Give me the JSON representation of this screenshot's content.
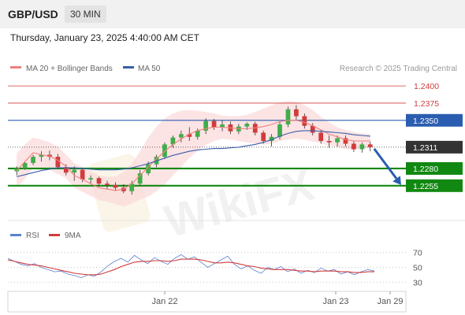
{
  "header": {
    "symbol": "GBP/USD",
    "timeframe": "30 MIN",
    "timestamp": "Thursday, January 23, 2025 4:40:00 AM CET"
  },
  "legend": {
    "ma20_label": "MA 20 + Bollinger Bands",
    "ma20_color": "#f08080",
    "ma50_label": "MA 50",
    "ma50_color": "#3a5ea8",
    "credit": "Research © 2025 Trading Central"
  },
  "watermark": "WikiFX",
  "colors": {
    "up_candle": "#3fae49",
    "down_candle": "#d23b3b",
    "resistance": "#d23b3b",
    "pivot": "#2a5db0",
    "support": "#118811",
    "current": "#333333",
    "rsi": "#5a82d2",
    "rsi_ma": "#d23b3b"
  },
  "chart_data": [
    {
      "type": "line",
      "title": "",
      "ylim": [
        1.2225,
        1.2415
      ],
      "x_tick_labels": [
        "Jan 22",
        "Jan 23",
        "Jan 29"
      ],
      "y_tick_labels": [
        "1.2400",
        "1.2375",
        "1.2350",
        "1.2311",
        "1.2280",
        "1.2255"
      ],
      "levels": [
        {
          "label": "1.2400",
          "value": 1.24,
          "kind": "resistance"
        },
        {
          "label": "1.2375",
          "value": 1.2375,
          "kind": "resistance"
        },
        {
          "label": "1.2350",
          "value": 1.235,
          "kind": "pivot"
        },
        {
          "label": "1.2311",
          "value": 1.2311,
          "kind": "current"
        },
        {
          "label": "1.2280",
          "value": 1.228,
          "kind": "support"
        },
        {
          "label": "1.2255",
          "value": 1.2255,
          "kind": "support"
        }
      ],
      "forecast_arrow": {
        "from": 1.2311,
        "to": 1.2255
      },
      "series": [
        {
          "name": "MA 20 + Bollinger Bands",
          "close": [
            1.2277,
            1.229,
            1.2303,
            1.23,
            1.2298,
            1.2292,
            1.2283,
            1.227,
            1.2264,
            1.2258,
            1.2252,
            1.225,
            1.2248,
            1.225,
            1.2258,
            1.227,
            1.2282,
            1.2294,
            1.2305,
            1.2315,
            1.2323,
            1.233,
            1.2335,
            1.2338,
            1.234,
            1.234,
            1.2339,
            1.2338,
            1.2338,
            1.2339,
            1.2341,
            1.2344,
            1.2348,
            1.235,
            1.235,
            1.2347,
            1.2342,
            1.2336,
            1.233,
            1.2326,
            1.2322,
            1.232,
            1.232,
            1.232
          ],
          "upper": [
            1.2302,
            1.2315,
            1.2325,
            1.2322,
            1.2318,
            1.2312,
            1.23,
            1.2288,
            1.2282,
            1.2276,
            1.227,
            1.2268,
            1.2268,
            1.2275,
            1.2287,
            1.2305,
            1.2325,
            1.2341,
            1.2353,
            1.236,
            1.2364,
            1.2365,
            1.2364,
            1.2362,
            1.236,
            1.2357,
            1.2356,
            1.2356,
            1.2358,
            1.2362,
            1.2367,
            1.2372,
            1.2376,
            1.2378,
            1.2377,
            1.2372,
            1.2365,
            1.2355,
            1.2347,
            1.234,
            1.2336,
            1.2333,
            1.2331,
            1.233
          ],
          "lower": [
            1.2252,
            1.2265,
            1.2281,
            1.2278,
            1.2278,
            1.2272,
            1.2266,
            1.2252,
            1.2246,
            1.224,
            1.2234,
            1.2232,
            1.2228,
            1.2225,
            1.2229,
            1.2235,
            1.2239,
            1.2247,
            1.2257,
            1.227,
            1.2282,
            1.2295,
            1.2306,
            1.2314,
            1.232,
            1.2323,
            1.2322,
            1.232,
            1.2318,
            1.2316,
            1.2315,
            1.2316,
            1.232,
            1.2322,
            1.2323,
            1.2322,
            1.2319,
            1.2317,
            1.2313,
            1.2312,
            1.2308,
            1.2307,
            1.2309,
            1.231
          ]
        },
        {
          "name": "MA 50",
          "close": [
            1.2268,
            1.2271,
            1.2274,
            1.2277,
            1.2279,
            1.2281,
            1.2281,
            1.2281,
            1.228,
            1.2279,
            1.2278,
            1.2278,
            1.2278,
            1.2279,
            1.2281,
            1.2284,
            1.2287,
            1.2291,
            1.2295,
            1.2299,
            1.2302,
            1.2305,
            1.2307,
            1.2308,
            1.2309,
            1.2309,
            1.231,
            1.2311,
            1.2313,
            1.2315,
            1.2318,
            1.2322,
            1.2327,
            1.2331,
            1.2334,
            1.2335,
            1.2335,
            1.2334,
            1.2333,
            1.2332,
            1.2331,
            1.2329,
            1.2328,
            1.2327
          ]
        }
      ],
      "candles": [
        [
          1.2276,
          1.2283,
          1.227,
          1.228
        ],
        [
          1.228,
          1.229,
          1.2278,
          1.2288
        ],
        [
          1.2288,
          1.23,
          1.2285,
          1.2297
        ],
        [
          1.2297,
          1.2305,
          1.229,
          1.23
        ],
        [
          1.23,
          1.2306,
          1.2292,
          1.2297
        ],
        [
          1.2297,
          1.2301,
          1.228,
          1.2282
        ],
        [
          1.2282,
          1.2286,
          1.227,
          1.2274
        ],
        [
          1.2274,
          1.2283,
          1.2262,
          1.2278
        ],
        [
          1.2278,
          1.228,
          1.226,
          1.2264
        ],
        [
          1.2264,
          1.227,
          1.2258,
          1.2266
        ],
        [
          1.2266,
          1.2268,
          1.2254,
          1.2258
        ],
        [
          1.2258,
          1.2262,
          1.225,
          1.2256
        ],
        [
          1.2256,
          1.226,
          1.2248,
          1.2252
        ],
        [
          1.2252,
          1.2257,
          1.2244,
          1.2247
        ],
        [
          1.2247,
          1.2262,
          1.2242,
          1.2258
        ],
        [
          1.2258,
          1.2278,
          1.2255,
          1.2273
        ],
        [
          1.2273,
          1.229,
          1.227,
          1.2286
        ],
        [
          1.2286,
          1.23,
          1.2282,
          1.2297
        ],
        [
          1.2297,
          1.2318,
          1.2294,
          1.2315
        ],
        [
          1.2315,
          1.2328,
          1.231,
          1.2325
        ],
        [
          1.2325,
          1.2335,
          1.2318,
          1.233
        ],
        [
          1.233,
          1.234,
          1.232,
          1.2326
        ],
        [
          1.2326,
          1.2338,
          1.2322,
          1.2335
        ],
        [
          1.2335,
          1.2353,
          1.233,
          1.2349
        ],
        [
          1.2349,
          1.2352,
          1.2336,
          1.234
        ],
        [
          1.234,
          1.235,
          1.2334,
          1.2344
        ],
        [
          1.2344,
          1.2348,
          1.233,
          1.2334
        ],
        [
          1.2334,
          1.2345,
          1.233,
          1.2341
        ],
        [
          1.2341,
          1.2347,
          1.2336,
          1.2345
        ],
        [
          1.2345,
          1.2348,
          1.2328,
          1.2332
        ],
        [
          1.2332,
          1.2335,
          1.2316,
          1.232
        ],
        [
          1.232,
          1.233,
          1.2312,
          1.2326
        ],
        [
          1.2326,
          1.2348,
          1.2322,
          1.2344
        ],
        [
          1.2344,
          1.237,
          1.234,
          1.2366
        ],
        [
          1.2366,
          1.2372,
          1.235,
          1.2356
        ],
        [
          1.2356,
          1.236,
          1.2338,
          1.2342
        ],
        [
          1.2342,
          1.2346,
          1.2328,
          1.2332
        ],
        [
          1.2332,
          1.2336,
          1.2316,
          1.232
        ],
        [
          1.232,
          1.2328,
          1.231,
          1.2318
        ],
        [
          1.2318,
          1.2328,
          1.2312,
          1.2324
        ],
        [
          1.2324,
          1.2328,
          1.2312,
          1.2316
        ],
        [
          1.2316,
          1.232,
          1.2304,
          1.2308
        ],
        [
          1.2308,
          1.2318,
          1.2303,
          1.2315
        ],
        [
          1.2315,
          1.2319,
          1.2305,
          1.2311
        ]
      ]
    },
    {
      "type": "line",
      "title": "",
      "ylim": [
        23,
        78
      ],
      "y_tick_labels": [
        "70",
        "50",
        "30"
      ],
      "series": [
        {
          "name": "RSI",
          "values": [
            62,
            58,
            54,
            52,
            55,
            50,
            47,
            44,
            45,
            41,
            39,
            36,
            40,
            38,
            44,
            52,
            58,
            62,
            57,
            66,
            60,
            55,
            63,
            58,
            54,
            62,
            67,
            61,
            64,
            57,
            50,
            55,
            60,
            65,
            54,
            48,
            52,
            46,
            42,
            50,
            47,
            51,
            44,
            48,
            42,
            46,
            43,
            49,
            45,
            47,
            41,
            44,
            40,
            44,
            47,
            45
          ]
        },
        {
          "name": "9MA",
          "values": [
            60,
            58,
            56,
            54,
            53,
            52,
            50,
            48,
            46,
            44,
            42,
            41,
            40,
            40,
            41,
            44,
            47,
            51,
            54,
            57,
            58,
            58,
            59,
            59,
            58,
            59,
            61,
            61,
            61,
            60,
            58,
            56,
            56,
            57,
            56,
            54,
            52,
            51,
            49,
            48,
            47,
            47,
            47,
            46,
            45,
            45,
            44,
            45,
            45,
            45,
            44,
            44,
            43,
            43,
            44,
            44
          ]
        }
      ]
    }
  ]
}
